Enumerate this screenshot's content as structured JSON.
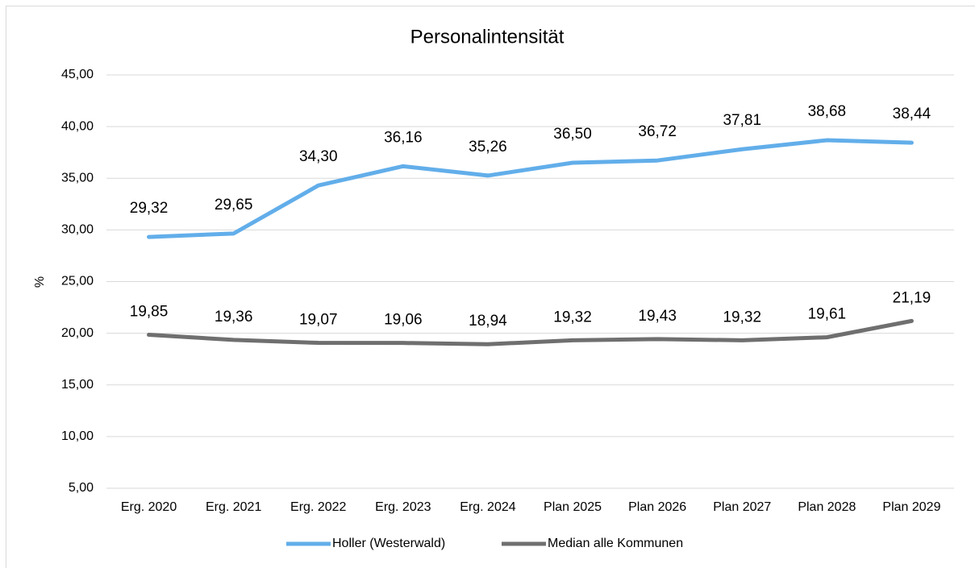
{
  "chart_data": {
    "type": "line",
    "title": "Personalintensität",
    "ylabel": "%",
    "categories": [
      "Erg. 2020",
      "Erg. 2021",
      "Erg. 2022",
      "Erg. 2023",
      "Erg. 2024",
      "Plan 2025",
      "Plan 2026",
      "Plan 2027",
      "Plan 2028",
      "Plan 2029"
    ],
    "series": [
      {
        "name": "Holler (Westerwald)",
        "color": "#62aeea",
        "values": [
          29.32,
          29.65,
          34.3,
          36.16,
          35.26,
          36.5,
          36.72,
          37.81,
          38.68,
          38.44
        ],
        "value_labels": [
          "29,32",
          "29,65",
          "34,30",
          "36,16",
          "35,26",
          "36,50",
          "36,72",
          "37,81",
          "38,68",
          "38,44"
        ]
      },
      {
        "name": "Median alle Kommunen",
        "color": "#6f6f6f",
        "values": [
          19.85,
          19.36,
          19.07,
          19.06,
          18.94,
          19.32,
          19.43,
          19.32,
          19.61,
          21.19
        ],
        "value_labels": [
          "19,85",
          "19,36",
          "19,07",
          "19,06",
          "18,94",
          "19,32",
          "19,43",
          "19,32",
          "19,61",
          "21,19"
        ]
      }
    ],
    "ylim": [
      5,
      45
    ],
    "yticks": [
      {
        "value": 5,
        "label": "5,00"
      },
      {
        "value": 10,
        "label": "10,00"
      },
      {
        "value": 15,
        "label": "15,00"
      },
      {
        "value": 20,
        "label": "20,00"
      },
      {
        "value": 25,
        "label": "25,00"
      },
      {
        "value": 30,
        "label": "30,00"
      },
      {
        "value": 35,
        "label": "35,00"
      },
      {
        "value": 40,
        "label": "40,00"
      },
      {
        "value": 45,
        "label": "45,00"
      }
    ],
    "grid": true,
    "legend": "bottom"
  }
}
